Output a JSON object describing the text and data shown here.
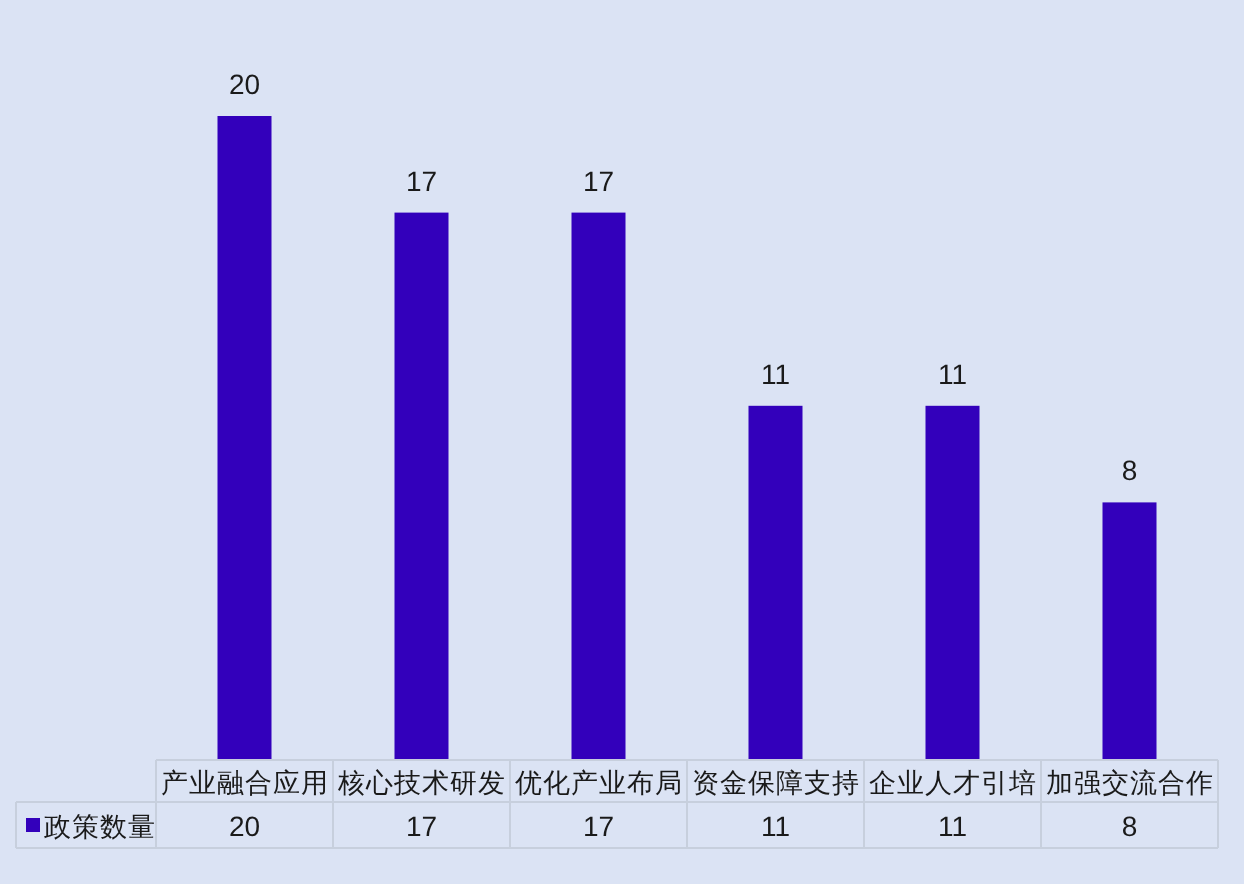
{
  "chart_data": {
    "type": "bar",
    "categories": [
      "产业融合应用",
      "核心技术研发",
      "优化产业布局",
      "资金保障支持",
      "企业人才引培",
      "加强交流合作"
    ],
    "series": [
      {
        "name": "政策数量",
        "color": "#3300bb",
        "values": [
          20,
          17,
          17,
          11,
          11,
          8
        ]
      }
    ],
    "data_labels": true,
    "legend": "bottom",
    "annotations": [
      {
        "text": "20",
        "x": "产业融合应用",
        "y": 20
      },
      {
        "text": "17",
        "x": "核心技术研发",
        "y": 17
      },
      {
        "text": "17",
        "x": "优化产业布局",
        "y": 17
      },
      {
        "text": "11",
        "x": "资金保障支持",
        "y": 11
      },
      {
        "text": "11",
        "x": "企业人才引培",
        "y": 11
      },
      {
        "text": "8",
        "x": "加强交流合作",
        "y": 8
      }
    ]
  }
}
